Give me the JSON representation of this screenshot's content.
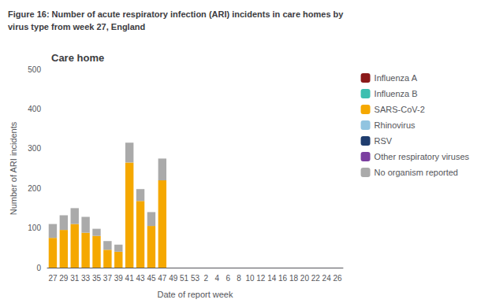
{
  "chart_data": {
    "type": "bar",
    "title": "Figure 16: Number of acute respiratory infection (ARI) incidents in care homes by\nvirus type from week 27, England",
    "subtitle": "Care home",
    "xlabel": "Date of report week",
    "ylabel": "Number of ARI incidents",
    "categories": [
      "27",
      "29",
      "31",
      "33",
      "35",
      "37",
      "39",
      "41",
      "43",
      "45",
      "47",
      "49",
      "51",
      "53",
      "2",
      "4",
      "6",
      "8",
      "10",
      "12",
      "14",
      "16",
      "18",
      "20",
      "22",
      "24",
      "26"
    ],
    "series": [
      {
        "name": "Influenza A",
        "color": "#8B1A1A",
        "values": [
          0,
          0,
          0,
          0,
          0,
          0,
          0,
          0,
          0,
          0,
          0,
          0,
          0,
          0,
          0,
          0,
          0,
          0,
          0,
          0,
          0,
          0,
          0,
          0,
          0,
          0,
          0
        ]
      },
      {
        "name": "Influenza B",
        "color": "#3DBFB0",
        "values": [
          0,
          0,
          0,
          0,
          0,
          0,
          0,
          0,
          0,
          0,
          0,
          0,
          0,
          0,
          0,
          0,
          0,
          0,
          0,
          0,
          0,
          0,
          0,
          0,
          0,
          0,
          0
        ]
      },
      {
        "name": "SARS-CoV-2",
        "color": "#F5A800",
        "values": [
          75,
          95,
          110,
          88,
          80,
          45,
          40,
          265,
          168,
          105,
          220,
          0,
          0,
          0,
          0,
          0,
          0,
          0,
          0,
          0,
          0,
          0,
          0,
          0,
          0,
          0,
          0
        ]
      },
      {
        "name": "Rhinovirus",
        "color": "#91C4E0",
        "values": [
          0,
          0,
          0,
          0,
          0,
          0,
          0,
          0,
          0,
          0,
          0,
          0,
          0,
          0,
          0,
          0,
          0,
          0,
          0,
          0,
          0,
          0,
          0,
          0,
          0,
          0,
          0
        ]
      },
      {
        "name": "RSV",
        "color": "#1F3D6E",
        "values": [
          0,
          0,
          0,
          0,
          0,
          0,
          0,
          0,
          0,
          0,
          0,
          0,
          0,
          0,
          0,
          0,
          0,
          0,
          0,
          0,
          0,
          0,
          0,
          0,
          0,
          0,
          0
        ]
      },
      {
        "name": "Other respiratory viruses",
        "color": "#7B3FA0",
        "values": [
          0,
          0,
          0,
          0,
          0,
          0,
          0,
          0,
          0,
          0,
          0,
          0,
          0,
          0,
          0,
          0,
          0,
          0,
          0,
          0,
          0,
          0,
          0,
          0,
          0,
          0,
          0
        ]
      },
      {
        "name": "No organism reported",
        "color": "#AAAAAA",
        "values": [
          35,
          37,
          40,
          40,
          18,
          22,
          18,
          50,
          30,
          35,
          55,
          0,
          0,
          0,
          0,
          0,
          0,
          0,
          0,
          0,
          0,
          0,
          0,
          0,
          0,
          0,
          0
        ]
      }
    ],
    "ylim": [
      0,
      500
    ],
    "yticks": [
      0,
      100,
      200,
      300,
      400,
      500
    ],
    "stacked": true,
    "grid": false,
    "legend": "right"
  }
}
